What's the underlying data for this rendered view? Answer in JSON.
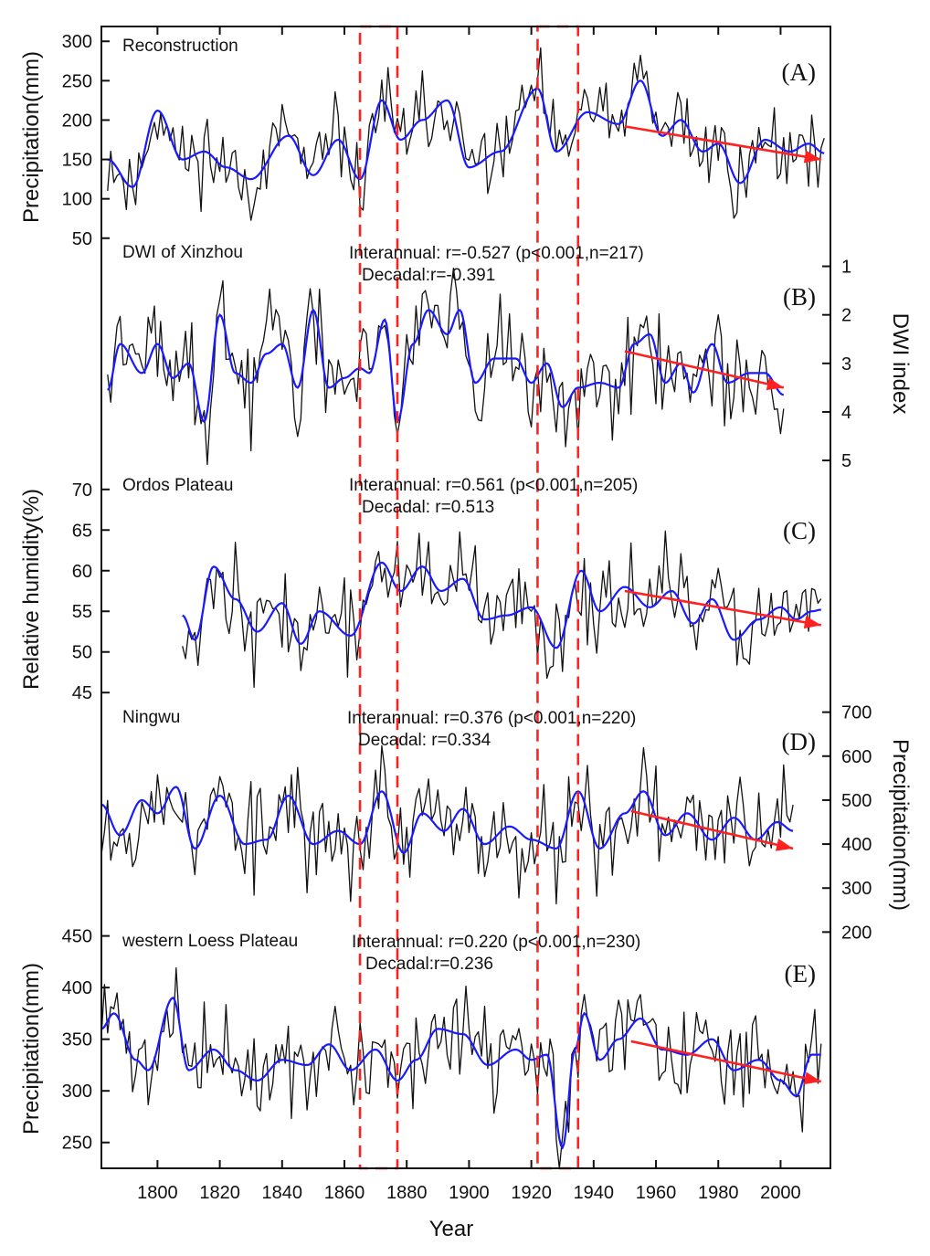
{
  "figure": {
    "x_axis": {
      "label": "Year",
      "range": [
        1782,
        2016
      ],
      "ticks": [
        1800,
        1820,
        1840,
        1860,
        1880,
        1900,
        1920,
        1940,
        1960,
        1980,
        2000
      ]
    },
    "left_axis_titles": [
      "Precipitation(mm)",
      "Relative humidity(%)",
      "Precipitation(mm)"
    ],
    "right_axis_titles": [
      "DWI index",
      "Precipitation(mm)"
    ],
    "highlight_boxes": [
      {
        "start_year": 1865,
        "end_year": 1877
      },
      {
        "start_year": 1922,
        "end_year": 1935
      }
    ],
    "colors": {
      "raw": "#111111",
      "smoothed": "#1a1aff",
      "trend": "#ff2020",
      "highlight": "#ff2020"
    }
  },
  "chart_data": [
    {
      "type": "line",
      "panel_label": "(A)",
      "title": "Reconstruction",
      "axis_side": "left",
      "ylabel": "Precipitation(mm)",
      "ylim": [
        30,
        320
      ],
      "yticks": [
        50,
        100,
        150,
        200,
        250,
        300
      ],
      "inverted": false,
      "start_year": 1784,
      "end_year": 2014,
      "mean": 170,
      "amplitude": 36,
      "seed": 11,
      "smooth_anchors": [
        [
          1784,
          150
        ],
        [
          1792,
          115
        ],
        [
          1800,
          212
        ],
        [
          1808,
          150
        ],
        [
          1815,
          160
        ],
        [
          1822,
          140
        ],
        [
          1830,
          125
        ],
        [
          1842,
          180
        ],
        [
          1850,
          130
        ],
        [
          1858,
          175
        ],
        [
          1865,
          125
        ],
        [
          1872,
          225
        ],
        [
          1878,
          175
        ],
        [
          1885,
          200
        ],
        [
          1893,
          225
        ],
        [
          1900,
          140
        ],
        [
          1910,
          160
        ],
        [
          1922,
          240
        ],
        [
          1928,
          160
        ],
        [
          1938,
          210
        ],
        [
          1948,
          195
        ],
        [
          1955,
          250
        ],
        [
          1962,
          180
        ],
        [
          1968,
          200
        ],
        [
          1975,
          160
        ],
        [
          1980,
          170
        ],
        [
          1987,
          120
        ],
        [
          1995,
          175
        ],
        [
          2003,
          160
        ],
        [
          2009,
          170
        ],
        [
          2014,
          158
        ]
      ],
      "trend": {
        "x": [
          1950,
          2013
        ],
        "y": [
          192,
          150
        ]
      },
      "annotations": []
    },
    {
      "type": "line",
      "panel_label": "(B)",
      "title": "DWI of Xinzhou",
      "axis_side": "right",
      "ylabel": "DWI index",
      "ylim": [
        5.3,
        0.5
      ],
      "yticks": [
        1,
        2,
        3,
        4,
        5
      ],
      "inverted": true,
      "start_year": 1784,
      "end_year": 2001,
      "mean": 3.2,
      "amplitude": 0.75,
      "seed": 23,
      "smooth_anchors": [
        [
          1784,
          3.55
        ],
        [
          1788,
          2.6
        ],
        [
          1795,
          3.2
        ],
        [
          1800,
          2.6
        ],
        [
          1805,
          3.3
        ],
        [
          1810,
          3.0
        ],
        [
          1815,
          4.2
        ],
        [
          1820,
          2.0
        ],
        [
          1825,
          3.2
        ],
        [
          1830,
          3.4
        ],
        [
          1835,
          2.8
        ],
        [
          1840,
          2.6
        ],
        [
          1845,
          3.5
        ],
        [
          1850,
          1.9
        ],
        [
          1855,
          3.5
        ],
        [
          1860,
          3.3
        ],
        [
          1865,
          3.1
        ],
        [
          1868,
          3.2
        ],
        [
          1873,
          2.1
        ],
        [
          1877,
          4.2
        ],
        [
          1882,
          2.6
        ],
        [
          1887,
          1.9
        ],
        [
          1893,
          2.4
        ],
        [
          1897,
          1.9
        ],
        [
          1902,
          3.4
        ],
        [
          1908,
          2.9
        ],
        [
          1915,
          2.9
        ],
        [
          1920,
          3.4
        ],
        [
          1925,
          3.0
        ],
        [
          1930,
          3.9
        ],
        [
          1935,
          3.5
        ],
        [
          1942,
          3.4
        ],
        [
          1948,
          3.5
        ],
        [
          1953,
          2.6
        ],
        [
          1958,
          2.4
        ],
        [
          1963,
          3.4
        ],
        [
          1968,
          3.0
        ],
        [
          1972,
          3.6
        ],
        [
          1978,
          2.6
        ],
        [
          1983,
          3.4
        ],
        [
          1990,
          3.2
        ],
        [
          1995,
          3.2
        ],
        [
          2001,
          3.65
        ]
      ],
      "trend": {
        "x": [
          1950,
          2001
        ],
        "y": [
          2.75,
          3.5
        ]
      },
      "annotations": [
        "Interannual: r=-0.527 (p<0.001,n=217)",
        "Decadal:r=-0.391"
      ]
    },
    {
      "type": "line",
      "panel_label": "(C)",
      "title": "Ordos Plateau",
      "axis_side": "left",
      "ylabel": "Relative humidity(%)",
      "ylim": [
        43,
        72
      ],
      "yticks": [
        45,
        50,
        55,
        60,
        65,
        70
      ],
      "inverted": false,
      "start_year": 1808,
      "end_year": 2013,
      "mean": 56,
      "amplitude": 4.2,
      "seed": 37,
      "smooth_anchors": [
        [
          1808,
          54.5
        ],
        [
          1812,
          51.5
        ],
        [
          1818,
          60.5
        ],
        [
          1825,
          56.5
        ],
        [
          1832,
          52.5
        ],
        [
          1840,
          56.0
        ],
        [
          1846,
          51.0
        ],
        [
          1852,
          55.0
        ],
        [
          1862,
          52.0
        ],
        [
          1872,
          61.0
        ],
        [
          1878,
          57.5
        ],
        [
          1885,
          60.5
        ],
        [
          1891,
          57.5
        ],
        [
          1898,
          59.0
        ],
        [
          1905,
          54.0
        ],
        [
          1912,
          54.5
        ],
        [
          1920,
          55.5
        ],
        [
          1928,
          50.5
        ],
        [
          1936,
          60.0
        ],
        [
          1942,
          55.0
        ],
        [
          1950,
          58.0
        ],
        [
          1958,
          55.5
        ],
        [
          1965,
          57.5
        ],
        [
          1972,
          53.5
        ],
        [
          1978,
          56.5
        ],
        [
          1985,
          51.5
        ],
        [
          1993,
          54.0
        ],
        [
          2000,
          55.5
        ],
        [
          2005,
          54.0
        ],
        [
          2010,
          55.0
        ],
        [
          2013,
          55.2
        ]
      ],
      "trend": {
        "x": [
          1950,
          2013
        ],
        "y": [
          57.5,
          53.3
        ]
      },
      "annotations": [
        "Interannual: r=0.561 (p<0.001,n=205)",
        "Decadal: r=0.513"
      ]
    },
    {
      "type": "line",
      "panel_label": "(D)",
      "title": "Ningwu",
      "axis_side": "right",
      "ylabel": "Precipitation(mm)",
      "ylim": [
        180,
        720
      ],
      "yticks": [
        200,
        300,
        400,
        500,
        600,
        700
      ],
      "inverted": false,
      "start_year": 1782,
      "end_year": 2004,
      "mean": 450,
      "amplitude": 85,
      "seed": 53,
      "smooth_anchors": [
        [
          1782,
          490
        ],
        [
          1788,
          420
        ],
        [
          1795,
          500
        ],
        [
          1800,
          470
        ],
        [
          1806,
          530
        ],
        [
          1812,
          390
        ],
        [
          1820,
          510
        ],
        [
          1828,
          400
        ],
        [
          1835,
          410
        ],
        [
          1842,
          510
        ],
        [
          1850,
          400
        ],
        [
          1858,
          430
        ],
        [
          1865,
          400
        ],
        [
          1872,
          520
        ],
        [
          1879,
          380
        ],
        [
          1885,
          470
        ],
        [
          1892,
          430
        ],
        [
          1898,
          480
        ],
        [
          1905,
          400
        ],
        [
          1913,
          440
        ],
        [
          1920,
          410
        ],
        [
          1928,
          390
        ],
        [
          1935,
          520
        ],
        [
          1942,
          390
        ],
        [
          1950,
          470
        ],
        [
          1956,
          520
        ],
        [
          1963,
          420
        ],
        [
          1970,
          470
        ],
        [
          1978,
          410
        ],
        [
          1985,
          460
        ],
        [
          1992,
          410
        ],
        [
          1999,
          450
        ],
        [
          2004,
          430
        ]
      ],
      "trend": {
        "x": [
          1952,
          2004
        ],
        "y": [
          475,
          390
        ]
      },
      "annotations": [
        "Interannual: r=0.376 (p<0.001,n=220)",
        "Decadal: r=0.334"
      ]
    },
    {
      "type": "line",
      "panel_label": "(E)",
      "title": "western Loess Plateau",
      "axis_side": "left",
      "ylabel": "Precipitation(mm)",
      "ylim": [
        225,
        470
      ],
      "yticks": [
        250,
        300,
        350,
        400,
        450
      ],
      "inverted": false,
      "start_year": 1782,
      "end_year": 2013,
      "mean": 335,
      "amplitude": 32,
      "seed": 71,
      "smooth_anchors": [
        [
          1782,
          360
        ],
        [
          1786,
          375
        ],
        [
          1793,
          330
        ],
        [
          1797,
          320
        ],
        [
          1805,
          390
        ],
        [
          1810,
          320
        ],
        [
          1818,
          340
        ],
        [
          1825,
          320
        ],
        [
          1832,
          310
        ],
        [
          1840,
          330
        ],
        [
          1848,
          325
        ],
        [
          1855,
          345
        ],
        [
          1862,
          320
        ],
        [
          1870,
          340
        ],
        [
          1877,
          310
        ],
        [
          1883,
          330
        ],
        [
          1890,
          360
        ],
        [
          1898,
          355
        ],
        [
          1906,
          325
        ],
        [
          1915,
          340
        ],
        [
          1920,
          330
        ],
        [
          1925,
          335
        ],
        [
          1930,
          245
        ],
        [
          1934,
          340
        ],
        [
          1937,
          375
        ],
        [
          1942,
          330
        ],
        [
          1948,
          350
        ],
        [
          1955,
          370
        ],
        [
          1962,
          340
        ],
        [
          1970,
          335
        ],
        [
          1978,
          350
        ],
        [
          1985,
          320
        ],
        [
          1993,
          330
        ],
        [
          2000,
          310
        ],
        [
          2005,
          295
        ],
        [
          2010,
          335
        ],
        [
          2013,
          335
        ]
      ],
      "trend": {
        "x": [
          1952,
          2013
        ],
        "y": [
          348,
          309
        ]
      },
      "annotations": [
        "Interannual: r=0.220 (p<0.001,n=230)",
        "Decadal:r=0.236"
      ]
    }
  ]
}
